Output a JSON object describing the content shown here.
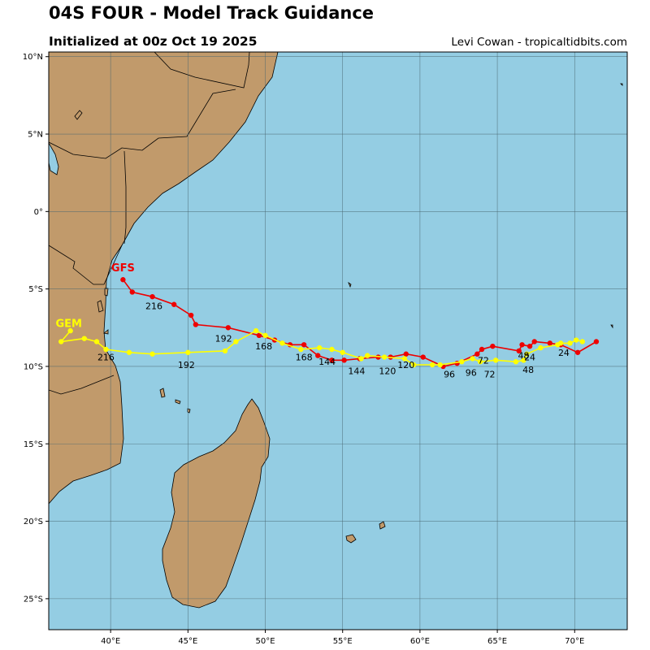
{
  "header": {
    "title": "04S FOUR - Model Track Guidance",
    "subtitle": "Initialized at 00z Oct 19 2025",
    "credit": "Levi Cowan - tropicaltidbits.com"
  },
  "map": {
    "lon_range": [
      36,
      73.4
    ],
    "lat_range": [
      -27,
      10.3
    ],
    "lon_ticks": [
      {
        "v": 40,
        "label": "40°E"
      },
      {
        "v": 45,
        "label": "45°E"
      },
      {
        "v": 50,
        "label": "50°E"
      },
      {
        "v": 55,
        "label": "55°E"
      },
      {
        "v": 60,
        "label": "60°E"
      },
      {
        "v": 65,
        "label": "65°E"
      },
      {
        "v": 70,
        "label": "70°E"
      }
    ],
    "lat_ticks": [
      {
        "v": 10,
        "label": "10°N"
      },
      {
        "v": 5,
        "label": "5°N"
      },
      {
        "v": 0,
        "label": "0°"
      },
      {
        "v": -5,
        "label": "5°S"
      },
      {
        "v": -10,
        "label": "10°S"
      },
      {
        "v": -15,
        "label": "15°S"
      },
      {
        "v": -20,
        "label": "20°S"
      },
      {
        "v": -25,
        "label": "25°S"
      }
    ],
    "colors": {
      "ocean": "#94cde3",
      "land": "#c19a6b",
      "coast": "#000000",
      "grid": "#4a6670"
    }
  },
  "chart_data": {
    "type": "scatter",
    "title": "04S FOUR - Model Track Guidance",
    "subtitle": "Initialized at 00z Oct 19 2025",
    "series": [
      {
        "name": "GFS",
        "color": "#ee0000",
        "points": [
          [
            71.4,
            -8.4
          ],
          [
            70.2,
            -9.1
          ],
          [
            69.1,
            -8.6
          ],
          [
            68.4,
            -8.5
          ],
          [
            67.4,
            -8.4
          ],
          [
            67.1,
            -8.7
          ],
          [
            66.6,
            -8.6
          ],
          [
            66.4,
            -9.0
          ],
          [
            64.7,
            -8.7
          ],
          [
            64.0,
            -8.9
          ],
          [
            63.7,
            -9.2
          ],
          [
            62.4,
            -9.8
          ],
          [
            61.5,
            -10.0
          ],
          [
            60.2,
            -9.4
          ],
          [
            59.1,
            -9.2
          ],
          [
            58.1,
            -9.4
          ],
          [
            57.3,
            -9.4
          ],
          [
            56.1,
            -9.5
          ],
          [
            55.1,
            -9.6
          ],
          [
            54.3,
            -9.6
          ],
          [
            53.4,
            -9.3
          ],
          [
            52.5,
            -8.6
          ],
          [
            51.6,
            -8.6
          ],
          [
            50.6,
            -8.3
          ],
          [
            49.6,
            -8.0
          ],
          [
            47.6,
            -7.5
          ],
          [
            45.5,
            -7.3
          ],
          [
            45.2,
            -6.7
          ],
          [
            44.1,
            -6.0
          ],
          [
            42.7,
            -5.5
          ],
          [
            41.4,
            -5.2
          ],
          [
            40.8,
            -4.4
          ]
        ],
        "hour_labels": [
          {
            "text": "24",
            "lon": 69.3,
            "lat": -9.1
          },
          {
            "text": "48",
            "lon": 66.7,
            "lat": -9.3
          },
          {
            "text": "72",
            "lon": 64.1,
            "lat": -9.6
          },
          {
            "text": "96",
            "lon": 61.9,
            "lat": -10.5
          },
          {
            "text": "120",
            "lon": 59.1,
            "lat": -9.9
          },
          {
            "text": "144",
            "lon": 54.0,
            "lat": -9.7
          },
          {
            "text": "168",
            "lon": 49.9,
            "lat": -8.7
          },
          {
            "text": "192",
            "lon": 47.3,
            "lat": -8.2
          },
          {
            "text": "216",
            "lon": 42.8,
            "lat": -6.1
          }
        ],
        "name_label": {
          "lon": 40.8,
          "lat": -3.6
        }
      },
      {
        "name": "GEM",
        "color": "#ffff00",
        "points": [
          [
            70.5,
            -8.4
          ],
          [
            70.1,
            -8.3
          ],
          [
            69.7,
            -8.5
          ],
          [
            69.1,
            -8.5
          ],
          [
            68.9,
            -8.6
          ],
          [
            67.8,
            -8.8
          ],
          [
            66.9,
            -9.2
          ],
          [
            66.7,
            -9.6
          ],
          [
            66.2,
            -9.7
          ],
          [
            64.9,
            -9.6
          ],
          [
            63.9,
            -9.7
          ],
          [
            63.4,
            -9.5
          ],
          [
            62.7,
            -9.7
          ],
          [
            61.3,
            -9.9
          ],
          [
            60.8,
            -9.9
          ],
          [
            59.6,
            -9.9
          ],
          [
            59.0,
            -9.5
          ],
          [
            57.7,
            -9.4
          ],
          [
            56.6,
            -9.3
          ],
          [
            56.2,
            -9.5
          ],
          [
            55.0,
            -9.1
          ],
          [
            54.3,
            -8.9
          ],
          [
            53.5,
            -8.8
          ],
          [
            52.3,
            -8.9
          ],
          [
            51.1,
            -8.5
          ],
          [
            50.0,
            -8.0
          ],
          [
            49.4,
            -7.7
          ],
          [
            48.1,
            -8.4
          ],
          [
            47.4,
            -9.0
          ],
          [
            45.0,
            -9.1
          ],
          [
            42.7,
            -9.2
          ],
          [
            41.2,
            -9.1
          ],
          [
            39.7,
            -8.9
          ],
          [
            39.1,
            -8.4
          ],
          [
            38.3,
            -8.2
          ],
          [
            36.8,
            -8.4
          ],
          [
            37.4,
            -7.7
          ]
        ],
        "hour_labels": [
          {
            "text": "24",
            "lon": 67.1,
            "lat": -9.4
          },
          {
            "text": "48",
            "lon": 67.0,
            "lat": -10.2
          },
          {
            "text": "72",
            "lon": 64.5,
            "lat": -10.5
          },
          {
            "text": "96",
            "lon": 63.3,
            "lat": -10.4
          },
          {
            "text": "120",
            "lon": 57.9,
            "lat": -10.3
          },
          {
            "text": "144",
            "lon": 55.9,
            "lat": -10.3
          },
          {
            "text": "168",
            "lon": 52.5,
            "lat": -9.4
          },
          {
            "text": "192",
            "lon": 44.9,
            "lat": -9.9
          },
          {
            "text": "216",
            "lon": 39.7,
            "lat": -9.4
          }
        ],
        "name_label": {
          "lon": 37.3,
          "lat": -7.2
        }
      }
    ],
    "xlim": [
      36,
      73.4
    ],
    "ylim": [
      -27,
      10.3
    ],
    "grid": true
  }
}
